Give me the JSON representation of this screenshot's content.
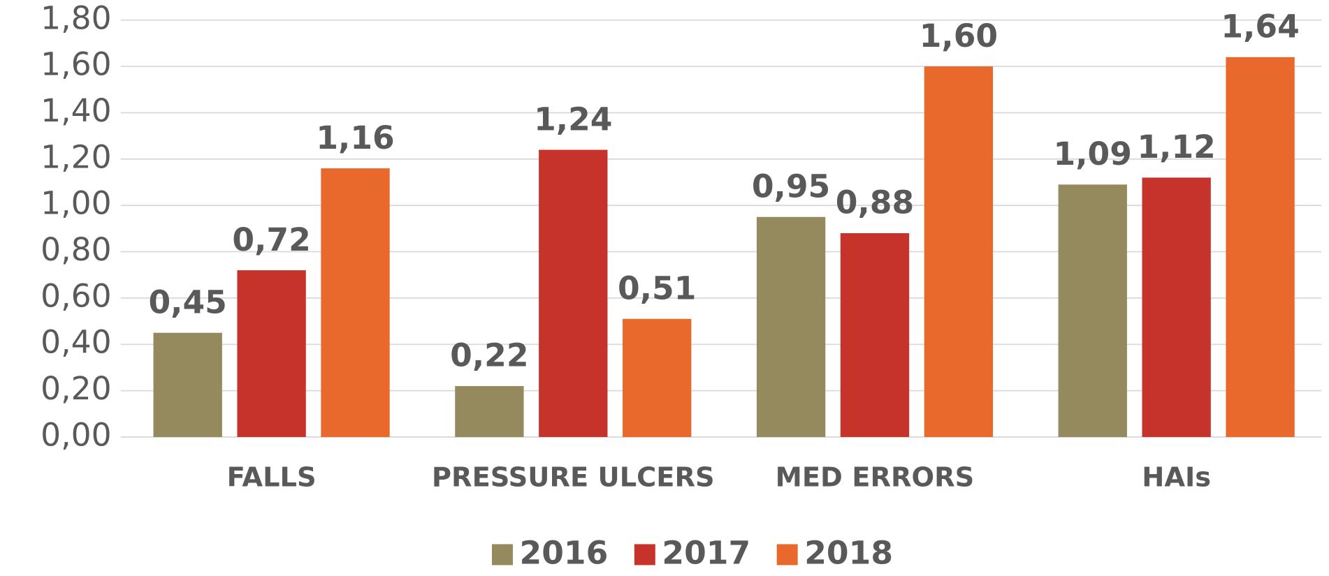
{
  "chart_data": {
    "type": "bar",
    "categories": [
      "FALLS",
      "PRESSURE ULCERS",
      "MED ERRORS",
      "HAIs"
    ],
    "series": [
      {
        "name": "2016",
        "color": "#948a5e",
        "values": [
          0.45,
          0.22,
          0.95,
          1.09
        ],
        "value_labels": [
          "0,45",
          "0,22",
          "0,95",
          "1,09"
        ]
      },
      {
        "name": "2017",
        "color": "#c6332a",
        "values": [
          0.72,
          1.24,
          0.88,
          1.12
        ],
        "value_labels": [
          "0,72",
          "1,24",
          "0,88",
          "1,12"
        ]
      },
      {
        "name": "2018",
        "color": "#e9692c",
        "values": [
          1.16,
          0.51,
          1.6,
          1.64
        ],
        "value_labels": [
          "1,16",
          "0,51",
          "1,60",
          "1,64"
        ]
      }
    ],
    "ylim": [
      0,
      1.8
    ],
    "yticks": [
      {
        "value": 0,
        "label": "0,00"
      },
      {
        "value": 0.2,
        "label": "0,20"
      },
      {
        "value": 0.4,
        "label": "0,40"
      },
      {
        "value": 0.6,
        "label": "0,60"
      },
      {
        "value": 0.8,
        "label": "0,80"
      },
      {
        "value": 1.0,
        "label": "1,00"
      },
      {
        "value": 1.2,
        "label": "1,20"
      },
      {
        "value": 1.4,
        "label": "1,40"
      },
      {
        "value": 1.6,
        "label": "1,60"
      },
      {
        "value": 1.8,
        "label": "1,80"
      }
    ],
    "grid": true,
    "legend": "bottom"
  }
}
